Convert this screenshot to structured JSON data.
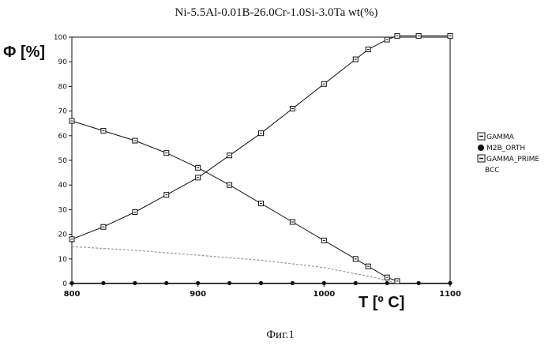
{
  "chart_data": {
    "type": "line",
    "title": "Ni-5.5Al-0.01B-26.0Cr-1.0Si-3.0Ta wt(%)",
    "ylabel": "Φ [%]",
    "xlabel": "T [º C]",
    "caption": "Фиг.1",
    "xlim": [
      800,
      1100
    ],
    "ylim": [
      0,
      100
    ],
    "x_ticks": [
      800,
      900,
      1000,
      1100
    ],
    "y_ticks": [
      0,
      10,
      20,
      30,
      40,
      50,
      60,
      70,
      80,
      90,
      100
    ],
    "grid": false,
    "legend_position": "right",
    "series": [
      {
        "name": "GAMMA",
        "marker": "square",
        "color": "#111111",
        "x": [
          800,
          825,
          850,
          875,
          900,
          925,
          950,
          975,
          1000,
          1025,
          1035,
          1050,
          1058,
          1075,
          1100
        ],
        "y": [
          18,
          23,
          29,
          36,
          43,
          52,
          61,
          71,
          81,
          91,
          95,
          99,
          100.5,
          100.5,
          100.5
        ]
      },
      {
        "name": "M2B_ORTH",
        "marker": "circle",
        "color": "#111111",
        "x": [
          800,
          825,
          850,
          875,
          900,
          925,
          950,
          975,
          1000,
          1025,
          1050,
          1075,
          1100
        ],
        "y": [
          0.2,
          0.2,
          0.2,
          0.2,
          0.2,
          0.2,
          0.2,
          0.2,
          0.2,
          0.2,
          0.2,
          0.2,
          0.2
        ]
      },
      {
        "name": "GAMMA_PRIME",
        "marker": "square",
        "color": "#111111",
        "x": [
          800,
          825,
          850,
          875,
          900,
          925,
          950,
          975,
          1000,
          1025,
          1035,
          1050,
          1058
        ],
        "y": [
          66,
          62,
          58,
          53,
          47,
          40,
          32.5,
          25,
          17.5,
          10,
          7,
          2.5,
          1
        ]
      },
      {
        "name": "BCC",
        "marker": "none",
        "color": "#9a9a9a",
        "x": [
          800,
          850,
          900,
          950,
          1000,
          1040,
          1055
        ],
        "y": [
          15,
          13.5,
          11.5,
          9.5,
          6.5,
          2.5,
          0.5
        ]
      }
    ]
  }
}
